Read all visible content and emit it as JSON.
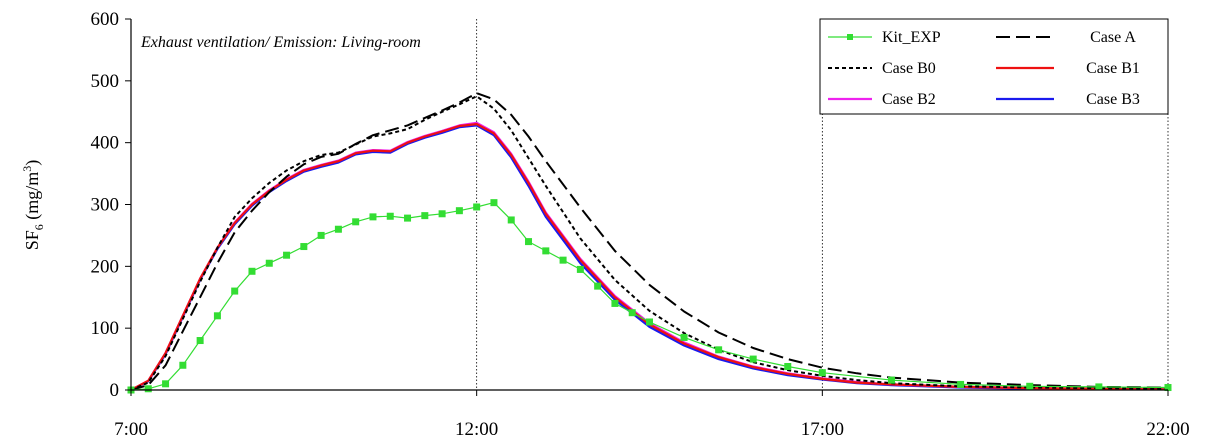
{
  "chart_data": {
    "type": "line",
    "annotation": "Exhaust ventilation/ Emission: Living-room",
    "ylabel": {
      "main": "SF",
      "sub": "6",
      "unit_open": " (mg/m",
      "unit_sup": "3",
      "unit_close": ")"
    },
    "xlabel": "",
    "x_unit": "hours",
    "xlim": [
      7,
      22
    ],
    "ylim": [
      0,
      600
    ],
    "x_ticks": [
      {
        "value": 7,
        "label": "7:00"
      },
      {
        "value": 12,
        "label": "12:00"
      },
      {
        "value": 17,
        "label": "17:00"
      },
      {
        "value": 22,
        "label": "22:00"
      }
    ],
    "y_ticks": [
      {
        "value": 0,
        "label": "0"
      },
      {
        "value": 100,
        "label": "100"
      },
      {
        "value": 200,
        "label": "200"
      },
      {
        "value": 300,
        "label": "300"
      },
      {
        "value": 400,
        "label": "400"
      },
      {
        "value": 500,
        "label": "500"
      },
      {
        "value": 600,
        "label": "600"
      }
    ],
    "vertical_reference_lines": [
      12,
      17,
      22
    ],
    "grid": false,
    "legend_position": "top-right",
    "series": [
      {
        "name": "Kit_EXP",
        "color": "#33dd33",
        "style": "solid-with-square-markers",
        "x": [
          7.0,
          7.25,
          7.5,
          7.75,
          8.0,
          8.25,
          8.5,
          8.75,
          9.0,
          9.25,
          9.5,
          9.75,
          10.0,
          10.25,
          10.5,
          10.75,
          11.0,
          11.25,
          11.5,
          11.75,
          12.0,
          12.25,
          12.5,
          12.75,
          13.0,
          13.25,
          13.5,
          13.75,
          14.0,
          14.25,
          14.5,
          15.0,
          15.5,
          16.0,
          16.5,
          17.0,
          18.0,
          19.0,
          20.0,
          21.0,
          22.0
        ],
        "y": [
          0,
          2,
          10,
          40,
          80,
          120,
          160,
          192,
          205,
          218,
          232,
          250,
          260,
          272,
          280,
          281,
          278,
          282,
          285,
          290,
          296,
          303,
          275,
          240,
          225,
          210,
          195,
          168,
          140,
          125,
          110,
          85,
          65,
          50,
          38,
          28,
          16,
          9,
          6,
          5,
          4
        ]
      },
      {
        "name": "Case A",
        "color": "#000000",
        "style": "long-dash",
        "x": [
          7.0,
          7.25,
          7.5,
          7.75,
          8.0,
          8.25,
          8.5,
          8.75,
          9.0,
          9.25,
          9.5,
          9.75,
          10.0,
          10.25,
          10.5,
          10.75,
          11.0,
          11.25,
          11.5,
          11.75,
          12.0,
          12.25,
          12.5,
          12.75,
          13.0,
          13.5,
          14.0,
          14.5,
          15.0,
          15.5,
          16.0,
          16.5,
          17.0,
          17.5,
          18.0,
          19.0,
          20.0,
          21.0,
          22.0
        ],
        "y": [
          0,
          8,
          40,
          95,
          150,
          205,
          255,
          290,
          320,
          345,
          365,
          377,
          382,
          398,
          412,
          420,
          428,
          440,
          452,
          465,
          480,
          470,
          445,
          410,
          370,
          295,
          225,
          170,
          127,
          93,
          68,
          50,
          36,
          27,
          20,
          12,
          8,
          5,
          4
        ]
      },
      {
        "name": "Case B0",
        "color": "#000000",
        "style": "short-dash",
        "x": [
          7.0,
          7.25,
          7.5,
          7.75,
          8.0,
          8.25,
          8.5,
          8.75,
          9.0,
          9.25,
          9.5,
          9.75,
          10.0,
          10.25,
          10.5,
          10.75,
          11.0,
          11.25,
          11.5,
          11.75,
          12.0,
          12.25,
          12.5,
          12.75,
          13.0,
          13.5,
          14.0,
          14.5,
          15.0,
          15.5,
          16.0,
          16.5,
          17.0,
          17.5,
          18.0,
          19.0,
          20.0,
          21.0,
          22.0
        ],
        "y": [
          0,
          12,
          55,
          115,
          175,
          230,
          280,
          310,
          335,
          355,
          370,
          380,
          384,
          397,
          410,
          415,
          422,
          437,
          450,
          462,
          475,
          455,
          420,
          375,
          330,
          245,
          178,
          128,
          92,
          65,
          45,
          32,
          23,
          16,
          11,
          6,
          4,
          3,
          2
        ]
      },
      {
        "name": "Case B1",
        "color": "#ee1111",
        "style": "solid",
        "x": [
          7.0,
          7.25,
          7.5,
          7.75,
          8.0,
          8.25,
          8.5,
          8.75,
          9.0,
          9.25,
          9.5,
          9.75,
          10.0,
          10.25,
          10.5,
          10.75,
          11.0,
          11.25,
          11.5,
          11.75,
          12.0,
          12.25,
          12.5,
          12.75,
          13.0,
          13.5,
          14.0,
          14.5,
          15.0,
          15.5,
          16.0,
          16.5,
          17.0,
          17.5,
          18.0,
          19.0,
          20.0,
          21.0,
          22.0
        ],
        "y": [
          0,
          15,
          60,
          120,
          180,
          230,
          270,
          300,
          322,
          340,
          355,
          363,
          370,
          383,
          387,
          386,
          400,
          410,
          418,
          427,
          430,
          415,
          380,
          335,
          285,
          210,
          150,
          106,
          75,
          53,
          37,
          26,
          18,
          12,
          9,
          5,
          3,
          2,
          1
        ]
      },
      {
        "name": "Case B2",
        "color": "#ee22ee",
        "style": "solid",
        "x": [
          7.0,
          7.25,
          7.5,
          7.75,
          8.0,
          8.25,
          8.5,
          8.75,
          9.0,
          9.25,
          9.5,
          9.75,
          10.0,
          10.25,
          10.5,
          10.75,
          11.0,
          11.25,
          11.5,
          11.75,
          12.0,
          12.25,
          12.5,
          12.75,
          13.0,
          13.5,
          14.0,
          14.5,
          15.0,
          15.5,
          16.0,
          16.5,
          17.0,
          17.5,
          18.0,
          19.0,
          20.0,
          21.0,
          22.0
        ],
        "y": [
          0,
          15,
          60,
          120,
          180,
          230,
          271,
          301,
          323,
          341,
          356,
          364,
          371,
          384,
          388,
          387,
          401,
          411,
          419,
          428,
          432,
          417,
          382,
          337,
          287,
          212,
          152,
          108,
          77,
          54,
          38,
          27,
          19,
          13,
          9,
          5,
          3,
          2,
          1
        ]
      },
      {
        "name": "Case B3",
        "color": "#1a1aee",
        "style": "solid",
        "x": [
          7.0,
          7.25,
          7.5,
          7.75,
          8.0,
          8.25,
          8.5,
          8.75,
          9.0,
          9.25,
          9.5,
          9.75,
          10.0,
          10.25,
          10.5,
          10.75,
          11.0,
          11.25,
          11.5,
          11.75,
          12.0,
          12.25,
          12.5,
          12.75,
          13.0,
          13.5,
          14.0,
          14.5,
          15.0,
          15.5,
          16.0,
          16.5,
          17.0,
          17.5,
          18.0,
          19.0,
          20.0,
          21.0,
          22.0
        ],
        "y": [
          0,
          14,
          58,
          118,
          178,
          228,
          268,
          298,
          320,
          338,
          353,
          361,
          368,
          381,
          385,
          384,
          398,
          408,
          416,
          425,
          428,
          412,
          376,
          330,
          280,
          205,
          146,
          102,
          72,
          50,
          35,
          24,
          17,
          11,
          8,
          4,
          2,
          1,
          1
        ]
      }
    ]
  }
}
